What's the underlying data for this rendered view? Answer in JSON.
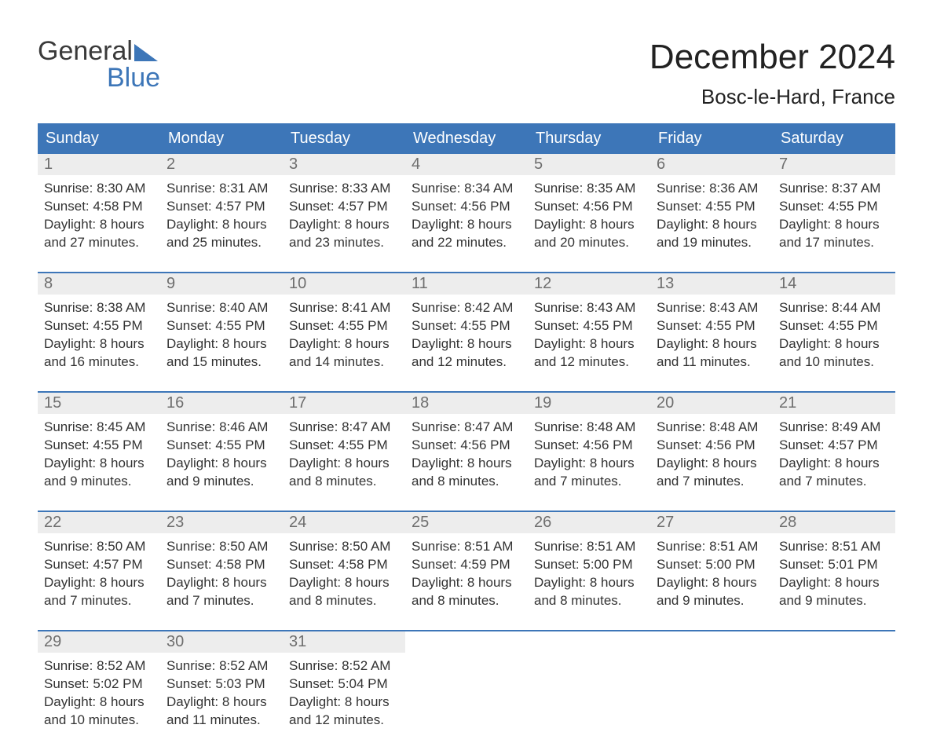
{
  "logo": {
    "line1": "General",
    "line2": "Blue",
    "accent_color": "#3d76b8"
  },
  "title": "December 2024",
  "location": "Bosc-le-Hard, France",
  "colors": {
    "header_bg": "#3d76b8",
    "header_text": "#ffffff",
    "daynum_bg": "#ededed",
    "daynum_text": "#6e6e6e",
    "body_text": "#333333",
    "week_divider": "#3d76b8"
  },
  "fonts": {
    "title_size_pt": 33,
    "location_size_pt": 20,
    "dow_size_pt": 15,
    "body_size_pt": 13
  },
  "days_of_week": [
    "Sunday",
    "Monday",
    "Tuesday",
    "Wednesday",
    "Thursday",
    "Friday",
    "Saturday"
  ],
  "weeks": [
    [
      {
        "n": "1",
        "sr": "Sunrise: 8:30 AM",
        "ss": "Sunset: 4:58 PM",
        "d1": "Daylight: 8 hours",
        "d2": "and 27 minutes."
      },
      {
        "n": "2",
        "sr": "Sunrise: 8:31 AM",
        "ss": "Sunset: 4:57 PM",
        "d1": "Daylight: 8 hours",
        "d2": "and 25 minutes."
      },
      {
        "n": "3",
        "sr": "Sunrise: 8:33 AM",
        "ss": "Sunset: 4:57 PM",
        "d1": "Daylight: 8 hours",
        "d2": "and 23 minutes."
      },
      {
        "n": "4",
        "sr": "Sunrise: 8:34 AM",
        "ss": "Sunset: 4:56 PM",
        "d1": "Daylight: 8 hours",
        "d2": "and 22 minutes."
      },
      {
        "n": "5",
        "sr": "Sunrise: 8:35 AM",
        "ss": "Sunset: 4:56 PM",
        "d1": "Daylight: 8 hours",
        "d2": "and 20 minutes."
      },
      {
        "n": "6",
        "sr": "Sunrise: 8:36 AM",
        "ss": "Sunset: 4:55 PM",
        "d1": "Daylight: 8 hours",
        "d2": "and 19 minutes."
      },
      {
        "n": "7",
        "sr": "Sunrise: 8:37 AM",
        "ss": "Sunset: 4:55 PM",
        "d1": "Daylight: 8 hours",
        "d2": "and 17 minutes."
      }
    ],
    [
      {
        "n": "8",
        "sr": "Sunrise: 8:38 AM",
        "ss": "Sunset: 4:55 PM",
        "d1": "Daylight: 8 hours",
        "d2": "and 16 minutes."
      },
      {
        "n": "9",
        "sr": "Sunrise: 8:40 AM",
        "ss": "Sunset: 4:55 PM",
        "d1": "Daylight: 8 hours",
        "d2": "and 15 minutes."
      },
      {
        "n": "10",
        "sr": "Sunrise: 8:41 AM",
        "ss": "Sunset: 4:55 PM",
        "d1": "Daylight: 8 hours",
        "d2": "and 14 minutes."
      },
      {
        "n": "11",
        "sr": "Sunrise: 8:42 AM",
        "ss": "Sunset: 4:55 PM",
        "d1": "Daylight: 8 hours",
        "d2": "and 12 minutes."
      },
      {
        "n": "12",
        "sr": "Sunrise: 8:43 AM",
        "ss": "Sunset: 4:55 PM",
        "d1": "Daylight: 8 hours",
        "d2": "and 12 minutes."
      },
      {
        "n": "13",
        "sr": "Sunrise: 8:43 AM",
        "ss": "Sunset: 4:55 PM",
        "d1": "Daylight: 8 hours",
        "d2": "and 11 minutes."
      },
      {
        "n": "14",
        "sr": "Sunrise: 8:44 AM",
        "ss": "Sunset: 4:55 PM",
        "d1": "Daylight: 8 hours",
        "d2": "and 10 minutes."
      }
    ],
    [
      {
        "n": "15",
        "sr": "Sunrise: 8:45 AM",
        "ss": "Sunset: 4:55 PM",
        "d1": "Daylight: 8 hours",
        "d2": "and 9 minutes."
      },
      {
        "n": "16",
        "sr": "Sunrise: 8:46 AM",
        "ss": "Sunset: 4:55 PM",
        "d1": "Daylight: 8 hours",
        "d2": "and 9 minutes."
      },
      {
        "n": "17",
        "sr": "Sunrise: 8:47 AM",
        "ss": "Sunset: 4:55 PM",
        "d1": "Daylight: 8 hours",
        "d2": "and 8 minutes."
      },
      {
        "n": "18",
        "sr": "Sunrise: 8:47 AM",
        "ss": "Sunset: 4:56 PM",
        "d1": "Daylight: 8 hours",
        "d2": "and 8 minutes."
      },
      {
        "n": "19",
        "sr": "Sunrise: 8:48 AM",
        "ss": "Sunset: 4:56 PM",
        "d1": "Daylight: 8 hours",
        "d2": "and 7 minutes."
      },
      {
        "n": "20",
        "sr": "Sunrise: 8:48 AM",
        "ss": "Sunset: 4:56 PM",
        "d1": "Daylight: 8 hours",
        "d2": "and 7 minutes."
      },
      {
        "n": "21",
        "sr": "Sunrise: 8:49 AM",
        "ss": "Sunset: 4:57 PM",
        "d1": "Daylight: 8 hours",
        "d2": "and 7 minutes."
      }
    ],
    [
      {
        "n": "22",
        "sr": "Sunrise: 8:50 AM",
        "ss": "Sunset: 4:57 PM",
        "d1": "Daylight: 8 hours",
        "d2": "and 7 minutes."
      },
      {
        "n": "23",
        "sr": "Sunrise: 8:50 AM",
        "ss": "Sunset: 4:58 PM",
        "d1": "Daylight: 8 hours",
        "d2": "and 7 minutes."
      },
      {
        "n": "24",
        "sr": "Sunrise: 8:50 AM",
        "ss": "Sunset: 4:58 PM",
        "d1": "Daylight: 8 hours",
        "d2": "and 8 minutes."
      },
      {
        "n": "25",
        "sr": "Sunrise: 8:51 AM",
        "ss": "Sunset: 4:59 PM",
        "d1": "Daylight: 8 hours",
        "d2": "and 8 minutes."
      },
      {
        "n": "26",
        "sr": "Sunrise: 8:51 AM",
        "ss": "Sunset: 5:00 PM",
        "d1": "Daylight: 8 hours",
        "d2": "and 8 minutes."
      },
      {
        "n": "27",
        "sr": "Sunrise: 8:51 AM",
        "ss": "Sunset: 5:00 PM",
        "d1": "Daylight: 8 hours",
        "d2": "and 9 minutes."
      },
      {
        "n": "28",
        "sr": "Sunrise: 8:51 AM",
        "ss": "Sunset: 5:01 PM",
        "d1": "Daylight: 8 hours",
        "d2": "and 9 minutes."
      }
    ],
    [
      {
        "n": "29",
        "sr": "Sunrise: 8:52 AM",
        "ss": "Sunset: 5:02 PM",
        "d1": "Daylight: 8 hours",
        "d2": "and 10 minutes."
      },
      {
        "n": "30",
        "sr": "Sunrise: 8:52 AM",
        "ss": "Sunset: 5:03 PM",
        "d1": "Daylight: 8 hours",
        "d2": "and 11 minutes."
      },
      {
        "n": "31",
        "sr": "Sunrise: 8:52 AM",
        "ss": "Sunset: 5:04 PM",
        "d1": "Daylight: 8 hours",
        "d2": "and 12 minutes."
      },
      null,
      null,
      null,
      null
    ]
  ]
}
